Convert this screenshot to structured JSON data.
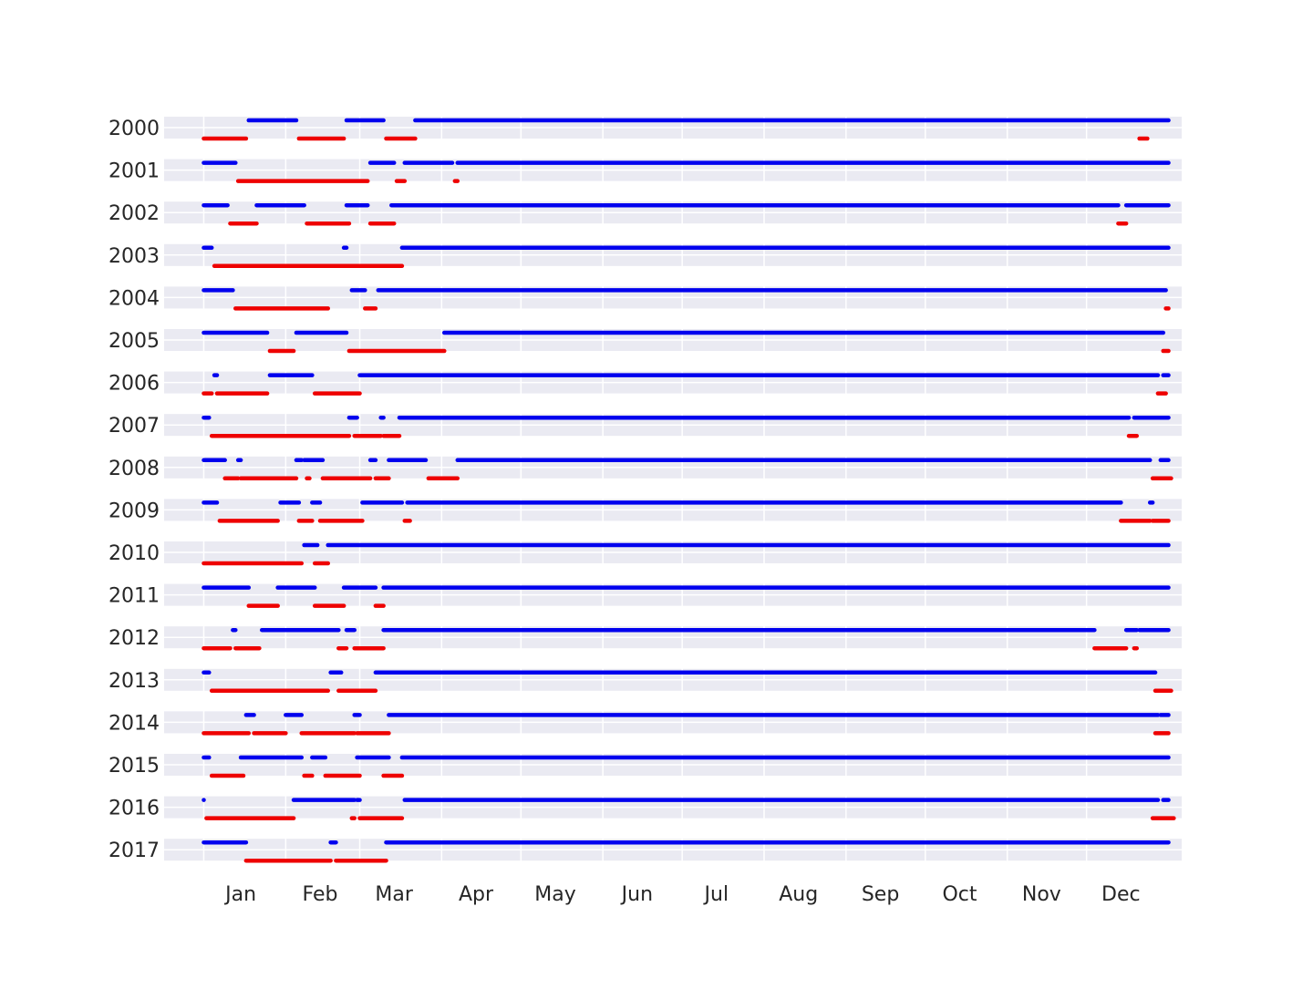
{
  "chart_data": {
    "type": "timeline",
    "title": "",
    "xlabel": "",
    "ylabel": "",
    "x_unit": "day_of_year",
    "xlim": [
      -14,
      371
    ],
    "months": [
      "Jan",
      "Feb",
      "Mar",
      "Apr",
      "May",
      "Jun",
      "Jul",
      "Aug",
      "Sep",
      "Oct",
      "Nov",
      "Dec"
    ],
    "month_tick_days": [
      15,
      45,
      73,
      104,
      134,
      165,
      195,
      226,
      257,
      287,
      318,
      348
    ],
    "gridline_days": [
      1,
      32,
      60,
      91,
      121,
      152,
      182,
      213,
      244,
      274,
      305,
      335
    ],
    "colors": {
      "series_a": "#0000ee",
      "series_b": "#ee0000",
      "band": "#eaeaf2",
      "grid": "#ffffff"
    },
    "series_names": [
      "series_a",
      "series_b"
    ],
    "years": [
      {
        "year": "2000",
        "a": [
          [
            18,
            36
          ],
          [
            55,
            69
          ],
          [
            81,
            366
          ]
        ],
        "b": [
          [
            1,
            17
          ],
          [
            37,
            54
          ],
          [
            70,
            81
          ],
          [
            355,
            358
          ]
        ]
      },
      {
        "year": "2001",
        "a": [
          [
            1,
            13
          ],
          [
            64,
            73
          ],
          [
            77,
            95
          ],
          [
            97,
            366
          ]
        ],
        "b": [
          [
            14,
            63
          ],
          [
            74,
            77
          ],
          [
            96,
            97
          ]
        ]
      },
      {
        "year": "2002",
        "a": [
          [
            1,
            10
          ],
          [
            21,
            39
          ],
          [
            55,
            63
          ],
          [
            72,
            347
          ],
          [
            350,
            366
          ]
        ],
        "b": [
          [
            11,
            21
          ],
          [
            40,
            56
          ],
          [
            64,
            73
          ],
          [
            347,
            350
          ]
        ]
      },
      {
        "year": "2003",
        "a": [
          [
            1,
            4
          ],
          [
            54,
            55
          ],
          [
            76,
            366
          ]
        ],
        "b": [
          [
            5,
            76
          ]
        ]
      },
      {
        "year": "2004",
        "a": [
          [
            1,
            12
          ],
          [
            57,
            62
          ],
          [
            67,
            365
          ]
        ],
        "b": [
          [
            13,
            48
          ],
          [
            62,
            66
          ],
          [
            365,
            366
          ]
        ]
      },
      {
        "year": "2005",
        "a": [
          [
            1,
            25
          ],
          [
            36,
            55
          ],
          [
            92,
            364
          ]
        ],
        "b": [
          [
            26,
            35
          ],
          [
            56,
            92
          ],
          [
            364,
            366
          ]
        ]
      },
      {
        "year": "2006",
        "a": [
          [
            5,
            6
          ],
          [
            26,
            42
          ],
          [
            60,
            362
          ],
          [
            364,
            366
          ]
        ],
        "b": [
          [
            1,
            4
          ],
          [
            6,
            25
          ],
          [
            43,
            60
          ],
          [
            362,
            365
          ]
        ]
      },
      {
        "year": "2007",
        "a": [
          [
            1,
            3
          ],
          [
            56,
            59
          ],
          [
            68,
            69
          ],
          [
            75,
            351
          ],
          [
            353,
            366
          ]
        ],
        "b": [
          [
            4,
            56
          ],
          [
            58,
            68
          ],
          [
            69,
            75
          ],
          [
            351,
            354
          ]
        ]
      },
      {
        "year": "2008",
        "a": [
          [
            1,
            9
          ],
          [
            14,
            15
          ],
          [
            36,
            38
          ],
          [
            39,
            46
          ],
          [
            64,
            66
          ],
          [
            71,
            85
          ],
          [
            97,
            359
          ],
          [
            363,
            366
          ]
        ],
        "b": [
          [
            9,
            14
          ],
          [
            15,
            36
          ],
          [
            40,
            41
          ],
          [
            46,
            64
          ],
          [
            66,
            71
          ],
          [
            86,
            97
          ],
          [
            360,
            367
          ]
        ]
      },
      {
        "year": "2009",
        "a": [
          [
            1,
            6
          ],
          [
            30,
            37
          ],
          [
            42,
            45
          ],
          [
            61,
            76
          ],
          [
            78,
            348
          ],
          [
            359,
            360
          ]
        ],
        "b": [
          [
            7,
            29
          ],
          [
            37,
            42
          ],
          [
            45,
            61
          ],
          [
            77,
            79
          ],
          [
            348,
            359
          ],
          [
            360,
            366
          ]
        ]
      },
      {
        "year": "2010",
        "a": [
          [
            39,
            44
          ],
          [
            48,
            366
          ]
        ],
        "b": [
          [
            1,
            38
          ],
          [
            43,
            48
          ]
        ]
      },
      {
        "year": "2011",
        "a": [
          [
            1,
            18
          ],
          [
            29,
            43
          ],
          [
            54,
            66
          ],
          [
            69,
            366
          ]
        ],
        "b": [
          [
            18,
            29
          ],
          [
            43,
            54
          ],
          [
            66,
            69
          ]
        ]
      },
      {
        "year": "2012",
        "a": [
          [
            12,
            13
          ],
          [
            23,
            52
          ],
          [
            55,
            58
          ],
          [
            69,
            338
          ],
          [
            350,
            354
          ],
          [
            355,
            366
          ]
        ],
        "b": [
          [
            1,
            11
          ],
          [
            13,
            22
          ],
          [
            52,
            55
          ],
          [
            58,
            69
          ],
          [
            338,
            350
          ],
          [
            353,
            354
          ]
        ]
      },
      {
        "year": "2013",
        "a": [
          [
            1,
            3
          ],
          [
            49,
            53
          ],
          [
            66,
            361
          ]
        ],
        "b": [
          [
            4,
            48
          ],
          [
            52,
            66
          ],
          [
            361,
            367
          ]
        ]
      },
      {
        "year": "2014",
        "a": [
          [
            17,
            20
          ],
          [
            32,
            38
          ],
          [
            58,
            60
          ],
          [
            71,
            362
          ],
          [
            363,
            366
          ]
        ],
        "b": [
          [
            1,
            18
          ],
          [
            20,
            32
          ],
          [
            38,
            58
          ],
          [
            59,
            71
          ],
          [
            361,
            366
          ]
        ]
      },
      {
        "year": "2015",
        "a": [
          [
            1,
            3
          ],
          [
            15,
            38
          ],
          [
            42,
            47
          ],
          [
            59,
            71
          ],
          [
            76,
            366
          ]
        ],
        "b": [
          [
            4,
            16
          ],
          [
            39,
            42
          ],
          [
            47,
            60
          ],
          [
            69,
            76
          ]
        ]
      },
      {
        "year": "2016",
        "a": [
          [
            1,
            1
          ],
          [
            35,
            58
          ],
          [
            59,
            60
          ],
          [
            77,
            362
          ],
          [
            364,
            366
          ]
        ],
        "b": [
          [
            2,
            35
          ],
          [
            57,
            58
          ],
          [
            60,
            76
          ],
          [
            360,
            368
          ]
        ]
      },
      {
        "year": "2017",
        "a": [
          [
            1,
            17
          ],
          [
            49,
            51
          ],
          [
            70,
            366
          ]
        ],
        "b": [
          [
            17,
            49
          ],
          [
            51,
            70
          ]
        ]
      }
    ]
  }
}
